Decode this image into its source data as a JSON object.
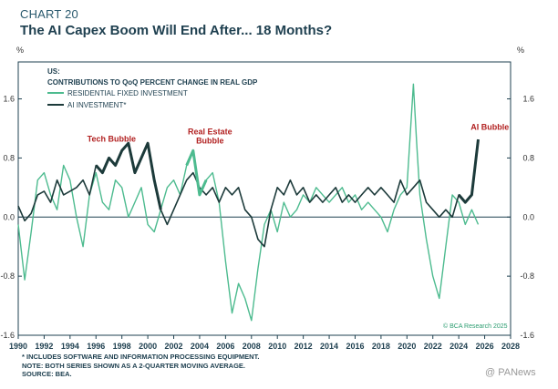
{
  "header": {
    "chart_label": "CHART 20",
    "title": "The AI Capex Boom Will End After... 18 Months?"
  },
  "footer": {
    "notes": [
      "* INCLUDES SOFTWARE AND INFORMATION PROCESSING EQUIPMENT.",
      "NOTE: BOTH SERIES SHOWN AS A 2-QUARTER MOVING AVERAGE.",
      "SOURCE: BEA."
    ],
    "copyright": "© BCA Research 2025",
    "watermark": "@ PANews"
  },
  "chart_data": {
    "type": "line",
    "unit_left": "%",
    "unit_right": "%",
    "ylim": [
      -1.6,
      2.1
    ],
    "yticks": [
      -1.6,
      -0.8,
      0.0,
      0.8,
      1.6
    ],
    "ytick_labels": [
      "-1.6",
      "-0.8",
      "0.0",
      "0.8",
      "1.6"
    ],
    "xlim": [
      1990,
      2028
    ],
    "xticks": [
      1990,
      1992,
      1994,
      1996,
      1998,
      2000,
      2002,
      2004,
      2006,
      2008,
      2010,
      2012,
      2014,
      2016,
      2018,
      2020,
      2022,
      2024,
      2026,
      2028
    ],
    "grid": false,
    "legend": {
      "placement": "top-left",
      "heading_1": "US:",
      "heading_2": "CONTRIBUTIONS TO QoQ PERCENT CHANGE IN REAL GDP"
    },
    "series": [
      {
        "name": "RESIDENTIAL FIXED INVESTMENT",
        "color": "#4dbb8f",
        "x": [
          1990.0,
          1990.5,
          1991.0,
          1991.5,
          1992.0,
          1992.5,
          1993.0,
          1993.5,
          1994.0,
          1994.5,
          1995.0,
          1995.5,
          1996.0,
          1996.5,
          1997.0,
          1997.5,
          1998.0,
          1998.5,
          1999.0,
          1999.5,
          2000.0,
          2000.5,
          2001.0,
          2001.5,
          2002.0,
          2002.5,
          2003.0,
          2003.5,
          2004.0,
          2004.5,
          2005.0,
          2005.5,
          2006.0,
          2006.5,
          2007.0,
          2007.5,
          2008.0,
          2008.5,
          2009.0,
          2009.5,
          2010.0,
          2010.5,
          2011.0,
          2011.5,
          2012.0,
          2012.5,
          2013.0,
          2013.5,
          2014.0,
          2014.5,
          2015.0,
          2015.5,
          2016.0,
          2016.5,
          2017.0,
          2017.5,
          2018.0,
          2018.5,
          2019.0,
          2019.5,
          2020.0,
          2020.5,
          2020.75,
          2021.0,
          2021.5,
          2022.0,
          2022.5,
          2023.0,
          2023.5,
          2024.0,
          2024.5,
          2025.0,
          2025.5
        ],
        "y": [
          -0.1,
          -0.85,
          -0.2,
          0.5,
          0.6,
          0.3,
          0.1,
          0.7,
          0.5,
          0.0,
          -0.4,
          0.3,
          0.6,
          0.2,
          0.1,
          0.5,
          0.4,
          0.0,
          0.2,
          0.4,
          -0.1,
          -0.2,
          0.1,
          0.4,
          0.5,
          0.3,
          0.7,
          0.9,
          0.3,
          0.5,
          0.6,
          0.2,
          -0.6,
          -1.3,
          -0.9,
          -1.1,
          -1.4,
          -0.7,
          -0.1,
          0.1,
          -0.2,
          0.2,
          0.0,
          0.1,
          0.3,
          0.2,
          0.4,
          0.3,
          0.2,
          0.3,
          0.4,
          0.2,
          0.3,
          0.1,
          0.2,
          0.1,
          0.0,
          -0.2,
          0.1,
          0.3,
          0.4,
          1.8,
          1.0,
          0.3,
          -0.3,
          -0.8,
          -1.1,
          -0.4,
          0.3,
          0.2,
          -0.1,
          0.1,
          -0.1
        ]
      },
      {
        "name": "AI INVESTMENT*",
        "color": "#1c3a3a",
        "x": [
          1990.0,
          1990.5,
          1991.0,
          1991.5,
          1992.0,
          1992.5,
          1993.0,
          1993.5,
          1994.0,
          1994.5,
          1995.0,
          1995.5,
          1996.0,
          1996.5,
          1997.0,
          1997.5,
          1998.0,
          1998.5,
          1999.0,
          1999.5,
          2000.0,
          2000.5,
          2001.0,
          2001.5,
          2002.0,
          2002.5,
          2003.0,
          2003.5,
          2004.0,
          2004.5,
          2005.0,
          2005.5,
          2006.0,
          2006.5,
          2007.0,
          2007.5,
          2008.0,
          2008.5,
          2009.0,
          2009.5,
          2010.0,
          2010.5,
          2011.0,
          2011.5,
          2012.0,
          2012.5,
          2013.0,
          2013.5,
          2014.0,
          2014.5,
          2015.0,
          2015.5,
          2016.0,
          2016.5,
          2017.0,
          2017.5,
          2018.0,
          2018.5,
          2019.0,
          2019.5,
          2020.0,
          2020.5,
          2021.0,
          2021.5,
          2022.0,
          2022.5,
          2023.0,
          2023.5,
          2024.0,
          2024.5,
          2025.0,
          2025.5
        ],
        "y": [
          0.15,
          -0.05,
          0.05,
          0.3,
          0.35,
          0.2,
          0.5,
          0.3,
          0.35,
          0.4,
          0.5,
          0.3,
          0.7,
          0.6,
          0.8,
          0.7,
          0.9,
          1.0,
          0.6,
          0.8,
          1.0,
          0.5,
          0.1,
          -0.1,
          0.1,
          0.3,
          0.5,
          0.6,
          0.4,
          0.3,
          0.4,
          0.2,
          0.4,
          0.3,
          0.4,
          0.1,
          0.0,
          -0.3,
          -0.4,
          0.1,
          0.4,
          0.3,
          0.5,
          0.3,
          0.4,
          0.2,
          0.3,
          0.2,
          0.3,
          0.4,
          0.2,
          0.3,
          0.2,
          0.3,
          0.4,
          0.3,
          0.4,
          0.3,
          0.2,
          0.5,
          0.3,
          0.4,
          0.5,
          0.2,
          0.1,
          0.0,
          0.1,
          0.0,
          0.3,
          0.2,
          0.3,
          1.05
        ]
      }
    ],
    "annotations": [
      {
        "id": "tech",
        "lines": [
          "Tech Bubble"
        ],
        "x": 1997.2,
        "y": 1.02
      },
      {
        "id": "realestate",
        "lines": [
          "Real Estate",
          "Bubble"
        ],
        "x": 2004.8,
        "y": 1.12
      },
      {
        "id": "ai",
        "lines": [
          "AI Bubble"
        ],
        "x": 2026.4,
        "y": 1.18
      }
    ],
    "highlights": [
      {
        "series": 1,
        "from": 1996.0,
        "to": 2001.0
      },
      {
        "series": 0,
        "from": 2003.0,
        "to": 2004.7
      },
      {
        "series": 1,
        "from": 2024.0,
        "to": 2025.5
      }
    ]
  }
}
